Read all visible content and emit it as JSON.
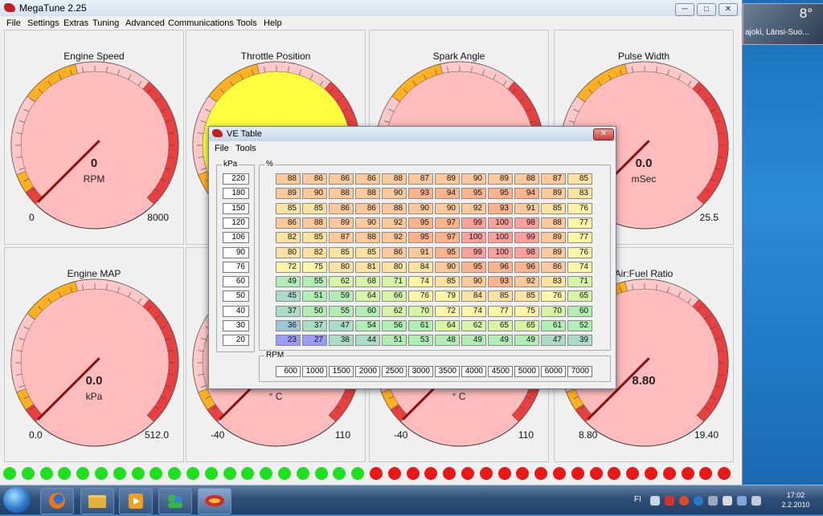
{
  "desktop": {
    "weather_temp": "8°",
    "weather_location": "ajoki, Länsi-Suo..."
  },
  "app": {
    "title": "MegaTune 2.25",
    "window_controls": {
      "minimize": "─",
      "maximize": "□",
      "close": "✕"
    },
    "menu": [
      "File",
      "Settings",
      "Extras",
      "Tuning",
      "Advanced",
      "Communications",
      "Tools",
      "Help"
    ]
  },
  "gauges": [
    {
      "title": "Engine Speed",
      "value": "0",
      "unit": "RPM",
      "min": "0",
      "max": "8000",
      "needle_fraction": 0.0,
      "face": "#ffbcbc"
    },
    {
      "title": "Throttle Position",
      "value": "",
      "unit": "",
      "min": "",
      "max": "",
      "needle_fraction": 0.0,
      "face": "#ffff40"
    },
    {
      "title": "Spark Angle",
      "value": "",
      "unit": "",
      "min": "",
      "max": "",
      "needle_fraction": 0.0,
      "face": "#ffbcbc"
    },
    {
      "title": "Pulse Width",
      "value": "0.0",
      "unit": "mSec",
      "min": "",
      "max": "25.5",
      "needle_fraction": 0.0,
      "face": "#ffbcbc"
    },
    {
      "title": "Engine MAP",
      "value": "0.0",
      "unit": "kPa",
      "min": "0.0",
      "max": "512.0",
      "needle_fraction": 0.0,
      "face": "#ffbcbc"
    },
    {
      "title": "",
      "value": "",
      "unit": "° C",
      "min": "-40",
      "max": "110",
      "needle_fraction": 0.0,
      "face": "#ffbcbc"
    },
    {
      "title": "",
      "value": "",
      "unit": "° C",
      "min": "-40",
      "max": "110",
      "needle_fraction": 0.0,
      "face": "#ffbcbc"
    },
    {
      "title": "Air:Fuel Ratio",
      "value": "8.80",
      "unit": "",
      "min": "8.80",
      "max": "19.40",
      "needle_fraction": 0.0,
      "face": "#ffbcbc"
    }
  ],
  "leds": {
    "green_count": 20,
    "red_count": 20,
    "green": "#1ee01e",
    "red": "#e81818"
  },
  "ve_table": {
    "title": "VE Table",
    "menu": [
      "File",
      "Tools"
    ],
    "close_label": "✕",
    "kpa_label": "kPa",
    "pct_label": "%",
    "rpm_label": "RPM",
    "kpa": [
      "220",
      "180",
      "150",
      "120",
      "106",
      "90",
      "76",
      "60",
      "50",
      "40",
      "30",
      "20"
    ],
    "rpm": [
      "600",
      "1000",
      "1500",
      "2000",
      "2500",
      "3000",
      "3500",
      "4000",
      "4500",
      "5000",
      "6000",
      "7000"
    ],
    "rows": [
      [
        "88",
        "86",
        "86",
        "86",
        "88",
        "87",
        "89",
        "90",
        "89",
        "88",
        "87",
        "85"
      ],
      [
        "89",
        "90",
        "88",
        "88",
        "90",
        "93",
        "94",
        "95",
        "95",
        "94",
        "89",
        "83"
      ],
      [
        "85",
        "85",
        "86",
        "86",
        "88",
        "90",
        "90",
        "92",
        "93",
        "91",
        "85",
        "76"
      ],
      [
        "86",
        "88",
        "89",
        "90",
        "92",
        "95",
        "97",
        "99",
        "100",
        "98",
        "88",
        "77"
      ],
      [
        "82",
        "85",
        "87",
        "88",
        "92",
        "95",
        "97",
        "100",
        "100",
        "99",
        "89",
        "77"
      ],
      [
        "80",
        "82",
        "85",
        "85",
        "86",
        "91",
        "95",
        "99",
        "100",
        "98",
        "89",
        "76"
      ],
      [
        "72",
        "75",
        "80",
        "81",
        "80",
        "84",
        "90",
        "95",
        "96",
        "96",
        "86",
        "74"
      ],
      [
        "49",
        "55",
        "62",
        "68",
        "71",
        "74",
        "85",
        "90",
        "93",
        "92",
        "83",
        "71"
      ],
      [
        "45",
        "51",
        "59",
        "64",
        "66",
        "76",
        "79",
        "84",
        "85",
        "85",
        "76",
        "65"
      ],
      [
        "37",
        "50",
        "55",
        "60",
        "62",
        "70",
        "72",
        "74",
        "77",
        "75",
        "70",
        "60"
      ],
      [
        "36",
        "37",
        "47",
        "54",
        "56",
        "61",
        "64",
        "62",
        "65",
        "65",
        "61",
        "52"
      ],
      [
        "23",
        "27",
        "38",
        "44",
        "51",
        "53",
        "48",
        "49",
        "49",
        "49",
        "47",
        "39"
      ]
    ]
  },
  "taskbar": {
    "tray_language": "FI",
    "clock_time": "17:02",
    "clock_date": "2.2.2010"
  }
}
